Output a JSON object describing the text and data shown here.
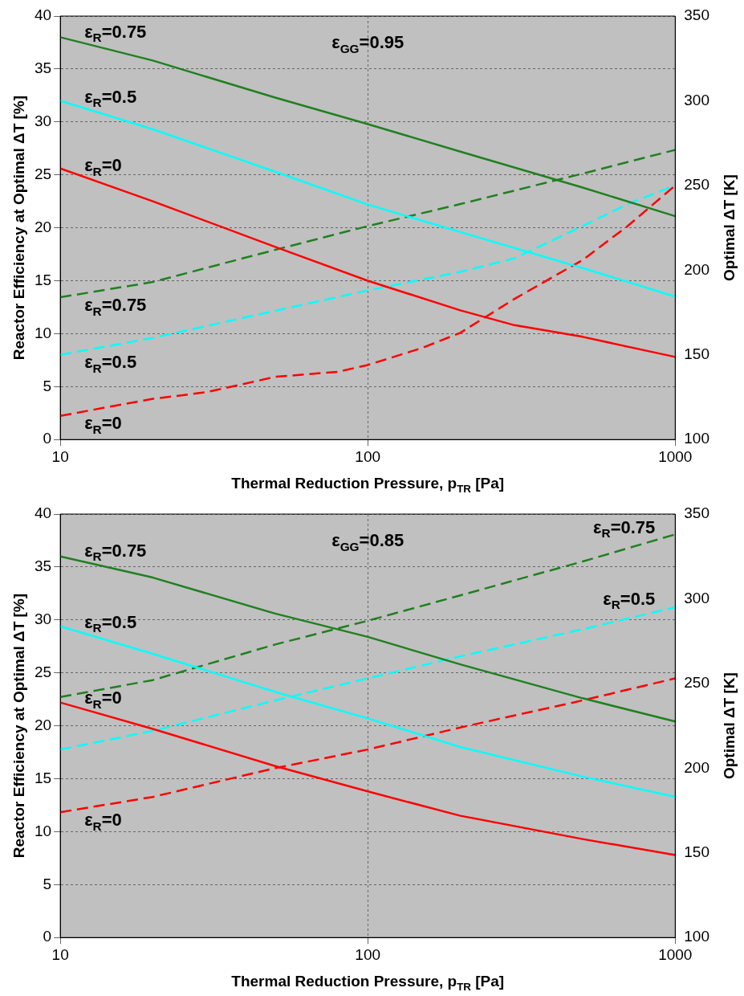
{
  "chart_data": [
    {
      "type": "line",
      "xlabel": "Thermal Reduction Pressure, p$_{TR}$ [Pa]",
      "ylabel": "Reactor Efficiency at Optimal ΔT [%]",
      "y2label": "Optimal ΔT [K]",
      "annotations": [
        "ε$_{GG}$=0.95"
      ],
      "log": "x",
      "grid": true,
      "legend": false,
      "xlim": [
        10,
        1000
      ],
      "xticks": [
        10,
        100,
        1000
      ],
      "ylim": [
        0,
        40
      ],
      "yticks": [
        0,
        5,
        10,
        15,
        20,
        25,
        30,
        35,
        40
      ],
      "y2lim": [
        100,
        350
      ],
      "y2ticks": [
        100,
        150,
        200,
        250,
        300,
        350
      ],
      "series": [
        {
          "name": "ε$_{R}$=0.75",
          "color": "#208020",
          "line_style": "solid",
          "x": [
            10,
            20,
            50,
            100,
            200,
            500,
            1000
          ],
          "values": [
            38,
            35.8,
            32.3,
            29.8,
            27.2,
            23.8,
            21.1
          ]
        },
        {
          "name": "ε$_{R}$=0.5",
          "color": "#00ffff",
          "line_style": "solid",
          "x": [
            10,
            20,
            50,
            100,
            200,
            500,
            1000
          ],
          "values": [
            32,
            29.3,
            25.3,
            22.2,
            19.6,
            16.2,
            13.5
          ]
        },
        {
          "name": "ε$_{R}$=0",
          "color": "#ff0000",
          "line_style": "solid",
          "x": [
            10,
            20,
            50,
            100,
            200,
            300,
            500,
            1000
          ],
          "values": [
            25.6,
            22.5,
            18.2,
            15,
            12.2,
            10.8,
            9.7,
            7.8
          ]
        },
        {
          "name": "ε$_{R}$=0.75",
          "color": "#208020",
          "line_style": "dashed",
          "axis": "y2",
          "x": [
            10,
            20,
            50,
            100,
            200,
            500,
            1000
          ],
          "values": [
            184,
            193,
            212,
            226,
            239,
            257,
            271
          ]
        },
        {
          "name": "ε$_{R}$=0.5",
          "color": "#00ffff",
          "line_style": "dashed",
          "axis": "y2",
          "x": [
            10,
            20,
            50,
            100,
            200,
            300,
            500,
            700,
            1000
          ],
          "values": [
            150,
            160,
            176,
            188,
            199,
            207,
            226,
            239,
            250
          ]
        },
        {
          "name": "ε$_{R}$=0",
          "color": "#ff0000",
          "line_style": "dashed",
          "axis": "y2",
          "x": [
            10,
            20,
            30,
            50,
            80,
            100,
            150,
            200,
            300,
            500,
            700,
            1000
          ],
          "values": [
            114,
            124,
            128,
            137,
            140,
            144,
            154,
            163,
            183,
            206,
            226,
            250
          ]
        }
      ]
    },
    {
      "type": "line",
      "xlabel": "Thermal Reduction Pressure, p$_{TR}$ [Pa]",
      "ylabel": "Reactor Efficiency at Optimal ΔT [%]",
      "y2label": "Optimal ΔT [K]",
      "annotations": [
        "ε$_{GG}$=0.85"
      ],
      "log": "x",
      "grid": true,
      "legend": false,
      "xlim": [
        10,
        1000
      ],
      "xticks": [
        10,
        100,
        1000
      ],
      "ylim": [
        0,
        40
      ],
      "yticks": [
        0,
        5,
        10,
        15,
        20,
        25,
        30,
        35,
        40
      ],
      "y2lim": [
        100,
        350
      ],
      "y2ticks": [
        100,
        150,
        200,
        250,
        300,
        350
      ],
      "series": [
        {
          "name": "ε$_{R}$=0.75",
          "color": "#208020",
          "line_style": "solid",
          "x": [
            10,
            20,
            50,
            100,
            200,
            500,
            1000
          ],
          "values": [
            36,
            34,
            30.6,
            28.4,
            25.8,
            22.6,
            20.4
          ]
        },
        {
          "name": "ε$_{R}$=0.5",
          "color": "#00ffff",
          "line_style": "solid",
          "x": [
            10,
            20,
            50,
            100,
            200,
            500,
            1000
          ],
          "values": [
            29.4,
            26.8,
            23.2,
            20.7,
            18,
            15.2,
            13.3
          ]
        },
        {
          "name": "ε$_{R}$=0",
          "color": "#ff0000",
          "line_style": "solid",
          "x": [
            10,
            20,
            50,
            100,
            200,
            500,
            1000
          ],
          "values": [
            22.2,
            19.7,
            16.2,
            13.8,
            11.5,
            9.3,
            7.8
          ]
        },
        {
          "name": "ε$_{R}$=0.75",
          "color": "#208020",
          "line_style": "dashed",
          "axis": "y2",
          "x": [
            10,
            20,
            50,
            100,
            200,
            500,
            1000
          ],
          "values": [
            242,
            252,
            273,
            287,
            302,
            322,
            338
          ]
        },
        {
          "name": "ε$_{R}$=0.5",
          "color": "#00ffff",
          "line_style": "dashed",
          "axis": "y2",
          "x": [
            10,
            20,
            50,
            100,
            200,
            500,
            1000
          ],
          "values": [
            211,
            222,
            240,
            253,
            266,
            282,
            295
          ]
        },
        {
          "name": "ε$_{R}$=0",
          "color": "#ff0000",
          "line_style": "dashed",
          "axis": "y2",
          "x": [
            10,
            20,
            50,
            100,
            200,
            500,
            1000
          ],
          "values": [
            174,
            183,
            200,
            211,
            224,
            240,
            253
          ]
        }
      ]
    }
  ]
}
